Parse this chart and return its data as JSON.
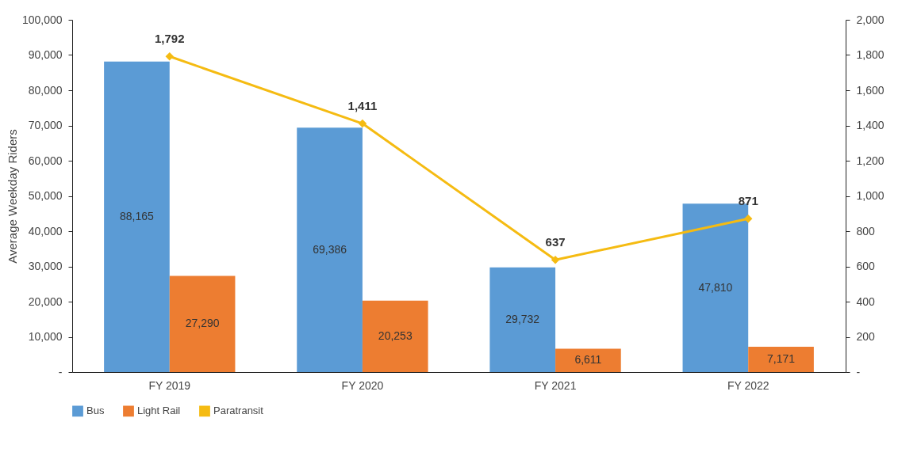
{
  "chart_data": {
    "type": "bar",
    "ylabel": "Average Weekday Riders",
    "categories": [
      "FY 2019",
      "FY 2020",
      "FY 2021",
      "FY 2022"
    ],
    "series": [
      {
        "name": "Bus",
        "color": "#5b9bd5",
        "values": [
          88165,
          69386,
          29732,
          47810
        ],
        "value_labels": [
          "88,165",
          "69,386",
          "29,732",
          "47,810"
        ]
      },
      {
        "name": "Light Rail",
        "color": "#ed7d31",
        "values": [
          27290,
          20253,
          6611,
          7171
        ],
        "value_labels": [
          "27,290",
          "20,253",
          "6,611",
          "7,171"
        ]
      },
      {
        "name": "Paratransit",
        "color": "#f5bb12",
        "type": "line",
        "axis": "y2",
        "marker": "diamond",
        "values": [
          1792,
          1411,
          637,
          871
        ],
        "value_labels": [
          "1,792",
          "1,411",
          "637",
          "871"
        ]
      }
    ],
    "ylim": [
      0,
      100000
    ],
    "yticks": [
      {
        "value": 0,
        "label": "-"
      },
      {
        "value": 10000,
        "label": "10,000"
      },
      {
        "value": 20000,
        "label": "20,000"
      },
      {
        "value": 30000,
        "label": "30,000"
      },
      {
        "value": 40000,
        "label": "40,000"
      },
      {
        "value": 50000,
        "label": "50,000"
      },
      {
        "value": 60000,
        "label": "60,000"
      },
      {
        "value": 70000,
        "label": "70,000"
      },
      {
        "value": 80000,
        "label": "80,000"
      },
      {
        "value": 90000,
        "label": "90,000"
      },
      {
        "value": 100000,
        "label": "100,000"
      }
    ],
    "y2lim": [
      0,
      2000
    ],
    "y2ticks": [
      {
        "value": 0,
        "label": "-"
      },
      200,
      400,
      600,
      800,
      {
        "value": 1000,
        "label": "1,000"
      },
      {
        "value": 1200,
        "label": "1,200"
      },
      {
        "value": 1400,
        "label": "1,400"
      },
      {
        "value": 1600,
        "label": "1,600"
      },
      {
        "value": 1800,
        "label": "1,800"
      },
      {
        "value": 2000,
        "label": "2,000"
      }
    ],
    "legend": "bottom",
    "grid": false
  }
}
